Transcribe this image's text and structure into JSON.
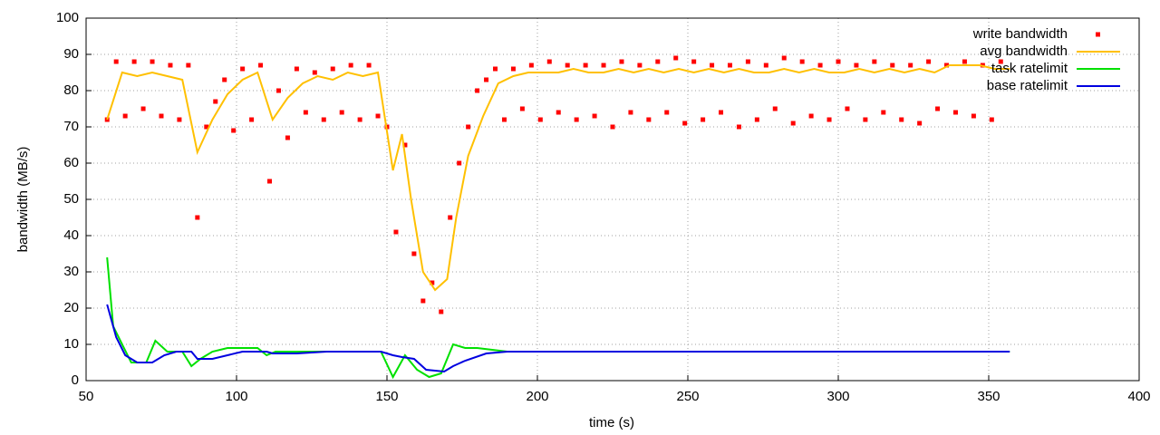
{
  "chart_data": {
    "type": "line",
    "xlabel": "time (s)",
    "ylabel": "bandwidth (MB/s)",
    "xlim": [
      50,
      400
    ],
    "xticks": [
      50,
      100,
      150,
      200,
      250,
      300,
      350,
      400
    ],
    "ylim": [
      0,
      100
    ],
    "yticks": [
      0,
      10,
      20,
      30,
      40,
      50,
      60,
      70,
      80,
      90,
      100
    ],
    "grid": true,
    "legend": "top-right",
    "series": [
      {
        "name": "write bandwidth",
        "color": "#ff0000",
        "marker": "points",
        "x": [
          57,
          60,
          63,
          66,
          69,
          72,
          75,
          78,
          81,
          84,
          87,
          90,
          93,
          96,
          99,
          102,
          105,
          108,
          111,
          114,
          117,
          120,
          123,
          126,
          129,
          132,
          135,
          138,
          141,
          144,
          147,
          150,
          153,
          156,
          159,
          162,
          165,
          168,
          171,
          174,
          177,
          180,
          183,
          186,
          189,
          192,
          195,
          198,
          201,
          204,
          207,
          210,
          213,
          216,
          219,
          222,
          225,
          228,
          231,
          234,
          237,
          240,
          243,
          246,
          249,
          252,
          255,
          258,
          261,
          264,
          267,
          270,
          273,
          276,
          279,
          282,
          285,
          288,
          291,
          294,
          297,
          300,
          303,
          306,
          309,
          312,
          315,
          318,
          321,
          324,
          327,
          330,
          333,
          336,
          339,
          342,
          345,
          348,
          351,
          354
        ],
        "values": [
          72,
          88,
          73,
          88,
          75,
          88,
          73,
          87,
          72,
          87,
          45,
          70,
          77,
          83,
          69,
          86,
          72,
          87,
          55,
          80,
          67,
          86,
          74,
          85,
          72,
          86,
          74,
          87,
          72,
          87,
          73,
          70,
          41,
          65,
          35,
          22,
          27,
          19,
          45,
          60,
          70,
          80,
          83,
          86,
          72,
          86,
          75,
          87,
          72,
          88,
          74,
          87,
          72,
          87,
          73,
          87,
          70,
          88,
          74,
          87,
          72,
          88,
          74,
          89,
          71,
          88,
          72,
          87,
          74,
          87,
          70,
          88,
          72,
          87,
          75,
          89,
          71,
          88,
          73,
          87,
          72,
          88,
          75,
          87,
          72,
          88,
          74,
          87,
          72,
          87,
          71,
          88,
          75,
          87,
          74,
          88,
          73,
          87,
          72,
          88
        ]
      },
      {
        "name": "avg bandwidth",
        "color": "#ffc000",
        "marker": "lines",
        "x": [
          57,
          62,
          67,
          72,
          77,
          82,
          87,
          92,
          97,
          102,
          107,
          112,
          117,
          122,
          127,
          132,
          137,
          142,
          147,
          152,
          155,
          158,
          162,
          166,
          170,
          173,
          177,
          182,
          187,
          192,
          197,
          202,
          207,
          212,
          217,
          222,
          227,
          232,
          237,
          242,
          247,
          252,
          257,
          262,
          267,
          272,
          277,
          282,
          287,
          292,
          297,
          302,
          307,
          312,
          317,
          322,
          327,
          332,
          337,
          342,
          347,
          352,
          357
        ],
        "values": [
          72,
          85,
          84,
          85,
          84,
          83,
          63,
          72,
          79,
          83,
          85,
          72,
          78,
          82,
          84,
          83,
          85,
          84,
          85,
          58,
          68,
          50,
          30,
          25,
          28,
          45,
          62,
          73,
          82,
          84,
          85,
          85,
          85,
          86,
          85,
          85,
          86,
          85,
          86,
          85,
          86,
          85,
          86,
          85,
          86,
          85,
          85,
          86,
          85,
          86,
          85,
          85,
          86,
          85,
          86,
          85,
          86,
          85,
          87,
          87,
          87,
          86,
          86
        ]
      },
      {
        "name": "task ratelimit",
        "color": "#00e000",
        "marker": "lines",
        "x": [
          57,
          59,
          62,
          65,
          70,
          73,
          77,
          82,
          85,
          88,
          92,
          97,
          102,
          107,
          110,
          113,
          120,
          130,
          140,
          148,
          152,
          156,
          160,
          164,
          168,
          172,
          176,
          180,
          190,
          200,
          220,
          240,
          260,
          280,
          300,
          320,
          340,
          357
        ],
        "values": [
          34,
          15,
          10,
          5,
          5,
          11,
          8,
          8,
          4,
          6,
          8,
          9,
          9,
          9,
          7,
          8,
          8,
          8,
          8,
          8,
          1,
          7,
          3,
          1,
          2,
          10,
          9,
          9,
          8,
          8,
          8,
          8,
          8,
          8,
          8,
          8,
          8,
          8
        ]
      },
      {
        "name": "base ratelimit",
        "color": "#0000e0",
        "marker": "lines",
        "x": [
          57,
          60,
          63,
          67,
          72,
          76,
          80,
          85,
          87,
          92,
          97,
          102,
          110,
          112,
          120,
          130,
          148,
          152,
          155,
          159,
          163,
          169,
          172,
          176,
          183,
          190,
          357
        ],
        "values": [
          21,
          12,
          7,
          5,
          5,
          7,
          8,
          8,
          6,
          6,
          7,
          8,
          8,
          7.5,
          7.5,
          8,
          8,
          7,
          6.5,
          6,
          3,
          2.5,
          4,
          5.5,
          7.5,
          8,
          8
        ]
      }
    ]
  }
}
